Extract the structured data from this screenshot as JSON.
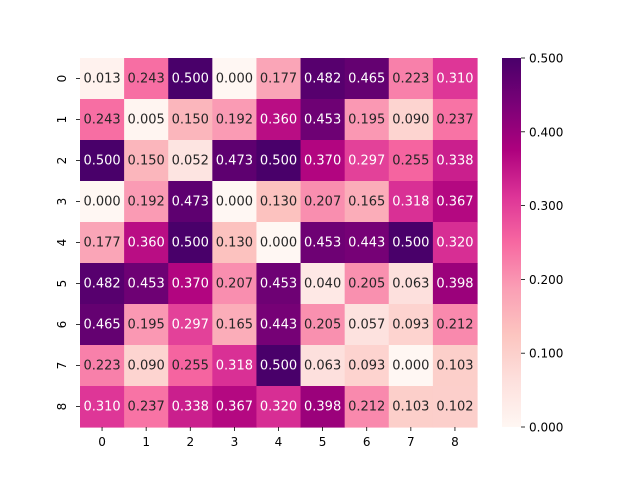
{
  "chart_data": {
    "type": "heatmap",
    "title": "",
    "xlabel": "",
    "ylabel": "",
    "x_categories": [
      "0",
      "1",
      "2",
      "3",
      "4",
      "5",
      "6",
      "7",
      "8"
    ],
    "y_categories": [
      "0",
      "1",
      "2",
      "3",
      "4",
      "5",
      "6",
      "7",
      "8"
    ],
    "values": [
      [
        0.013,
        0.243,
        0.5,
        0.0,
        0.177,
        0.482,
        0.465,
        0.223,
        0.31
      ],
      [
        0.243,
        0.005,
        0.15,
        0.192,
        0.36,
        0.453,
        0.195,
        0.09,
        0.237
      ],
      [
        0.5,
        0.15,
        0.052,
        0.473,
        0.5,
        0.37,
        0.297,
        0.255,
        0.338
      ],
      [
        0.0,
        0.192,
        0.473,
        0.0,
        0.13,
        0.207,
        0.165,
        0.318,
        0.367
      ],
      [
        0.177,
        0.36,
        0.5,
        0.13,
        0.0,
        0.453,
        0.443,
        0.5,
        0.32
      ],
      [
        0.482,
        0.453,
        0.37,
        0.207,
        0.453,
        0.04,
        0.205,
        0.063,
        0.398
      ],
      [
        0.465,
        0.195,
        0.297,
        0.165,
        0.443,
        0.205,
        0.057,
        0.093,
        0.212
      ],
      [
        0.223,
        0.09,
        0.255,
        0.318,
        0.5,
        0.063,
        0.093,
        0.0,
        0.103
      ],
      [
        0.31,
        0.237,
        0.338,
        0.367,
        0.32,
        0.398,
        0.212,
        0.103,
        0.102
      ]
    ],
    "value_format": "0.000",
    "vmin": 0.0,
    "vmax": 0.5,
    "colormap": "RdPu",
    "colorbar": {
      "ticks": [
        0.0,
        0.1,
        0.2,
        0.3,
        0.4,
        0.5
      ],
      "tick_labels": [
        "0.000",
        "0.100",
        "0.200",
        "0.300",
        "0.400",
        "0.500"
      ]
    }
  }
}
